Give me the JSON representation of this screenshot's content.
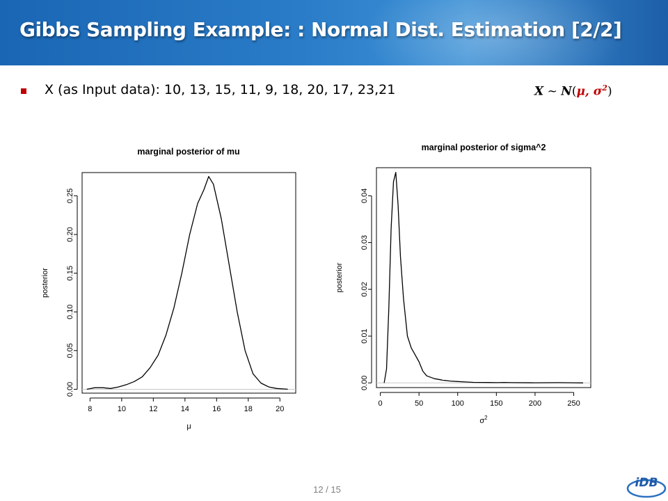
{
  "slide": {
    "title": "Gibbs Sampling Example: : Normal Dist. Estimation [2/2]",
    "bullet_text": "X (as Input data): 10, 13, 15, 11, 9, 18, 20, 17, 23,21",
    "formula": {
      "lhs": "X",
      "op": " ~ ",
      "dist": "N",
      "open": "(",
      "params": "μ, σ",
      "exp": "2",
      "close": ")"
    },
    "page_number": "12 / 15",
    "logo_text": "iDB",
    "colors": {
      "title_bar": "#2a7cc8",
      "bullet": "#c00000",
      "param": "#c00000"
    }
  },
  "chart_data": [
    {
      "type": "line",
      "title": "marginal posterior of mu",
      "xlabel": "μ",
      "ylabel": "posterior",
      "xlim": [
        7.5,
        21
      ],
      "ylim": [
        -0.005,
        0.28
      ],
      "xticks": [
        8,
        10,
        12,
        14,
        16,
        18,
        20
      ],
      "xtick_labels": [
        "8",
        "10",
        "12",
        "14",
        "16",
        "18",
        "20"
      ],
      "yticks": [
        0.0,
        0.05,
        0.1,
        0.15,
        0.2,
        0.25
      ],
      "ytick_labels": [
        "0.00",
        "0.05",
        "0.10",
        "0.15",
        "0.20",
        "0.25"
      ],
      "baseline": 0,
      "x": [
        7.8,
        8.3,
        8.8,
        9.3,
        9.8,
        10.3,
        10.8,
        11.3,
        11.8,
        12.3,
        12.8,
        13.3,
        13.8,
        14.3,
        14.8,
        15.2,
        15.5,
        15.8,
        16.3,
        16.8,
        17.3,
        17.8,
        18.3,
        18.8,
        19.3,
        19.8,
        20.5
      ],
      "y": [
        0.0,
        0.002,
        0.002,
        0.001,
        0.003,
        0.006,
        0.01,
        0.016,
        0.028,
        0.044,
        0.07,
        0.105,
        0.15,
        0.2,
        0.24,
        0.258,
        0.275,
        0.265,
        0.22,
        0.16,
        0.1,
        0.05,
        0.02,
        0.008,
        0.003,
        0.001,
        0.0
      ]
    },
    {
      "type": "line",
      "title": "marginal posterior of sigma^2",
      "xlabel": "σ",
      "xlabel_sup": "2",
      "ylabel": "posterior",
      "xlim": [
        -5,
        272
      ],
      "ylim": [
        -0.001,
        0.046
      ],
      "xticks": [
        0,
        50,
        100,
        150,
        200,
        250
      ],
      "xtick_labels": [
        "0",
        "50",
        "100",
        "150",
        "200",
        "250"
      ],
      "yticks": [
        0.0,
        0.01,
        0.02,
        0.03,
        0.04
      ],
      "ytick_labels": [
        "0.00",
        "0.01",
        "0.02",
        "0.03",
        "0.04"
      ],
      "baseline": 0,
      "x": [
        5,
        8,
        11,
        14,
        17,
        20,
        23,
        26,
        30,
        35,
        40,
        45,
        50,
        55,
        60,
        70,
        80,
        90,
        100,
        110,
        120,
        130,
        140,
        150,
        160,
        170,
        200,
        230,
        250,
        262
      ],
      "y": [
        0.0,
        0.003,
        0.016,
        0.033,
        0.043,
        0.045,
        0.038,
        0.027,
        0.018,
        0.01,
        0.0075,
        0.006,
        0.0045,
        0.0025,
        0.0015,
        0.0009,
        0.0006,
        0.0004,
        0.0003,
        0.0002,
        0.00012,
        0.0001,
        8e-05,
        6e-05,
        0.0001,
        5e-05,
        3e-05,
        5e-05,
        2e-05,
        0.0
      ]
    }
  ]
}
